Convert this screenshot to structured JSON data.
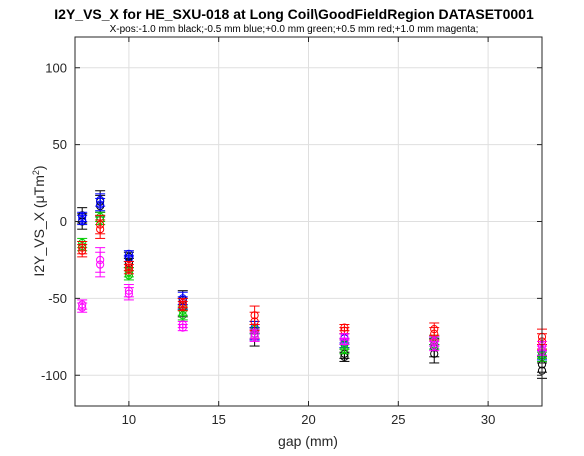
{
  "chart_data": {
    "type": "scatter",
    "title": "I2Y_VS_X for HE_SXU-018 at Long Coil\\GoodFieldRegion DATASET0001",
    "subtitle": "X-pos:-1.0 mm black;-0.5 mm blue;+0.0 mm green;+0.5 mm red;+1.0 mm magenta;",
    "xlabel": "gap (mm)",
    "ylabel_main": "I2Y_VS_X (μTm",
    "ylabel_sup": "2",
    "ylabel_end": ")",
    "xlim": [
      7,
      33
    ],
    "ylim": [
      -120,
      120
    ],
    "xticks": [
      10,
      15,
      20,
      25,
      30
    ],
    "yticks": [
      100,
      50,
      0,
      -50,
      -100
    ],
    "grid": true,
    "marker": "circle",
    "errorbars": true,
    "series": [
      {
        "color": "#000000",
        "points": [
          {
            "x": 7.4,
            "values": [
              4,
              0
            ],
            "err": 5
          },
          {
            "x": 8.4,
            "values": [
              13,
              10
            ],
            "err": 7
          },
          {
            "x": 10,
            "values": [
              -23,
              -27
            ],
            "err": 3
          },
          {
            "x": 13,
            "values": [
              -51,
              -56
            ],
            "err": 6
          },
          {
            "x": 17,
            "values": [
              -71,
              -75
            ],
            "err": 6
          },
          {
            "x": 22,
            "values": [
              -86,
              -88
            ],
            "err": 3
          },
          {
            "x": 27,
            "values": [
              -86,
              -82
            ],
            "err": 6
          },
          {
            "x": 33,
            "values": [
              -97,
              -93
            ],
            "err": 5
          }
        ]
      },
      {
        "color": "#0000ff",
        "points": [
          {
            "x": 7.4,
            "values": [
              3,
              1
            ],
            "err": 3
          },
          {
            "x": 8.4,
            "values": [
              14,
              11
            ],
            "err": 4
          },
          {
            "x": 10,
            "values": [
              -21,
              -24
            ],
            "err": 2
          },
          {
            "x": 13,
            "values": [
              -50,
              -53
            ],
            "err": 4
          },
          {
            "x": 17,
            "values": [
              -69,
              -73
            ],
            "err": 4
          },
          {
            "x": 22,
            "values": [
              -76,
              -79
            ],
            "err": 3
          },
          {
            "x": 27,
            "values": [
              -78,
              -80
            ],
            "err": 3
          },
          {
            "x": 33,
            "values": [
              -84,
              -87
            ],
            "err": 3
          }
        ]
      },
      {
        "color": "#00cc00",
        "points": [
          {
            "x": 7.4,
            "values": [
              -14,
              -16
            ],
            "err": 3
          },
          {
            "x": 8.4,
            "values": [
              3,
              1
            ],
            "err": 3
          },
          {
            "x": 10,
            "values": [
              -33,
              -35
            ],
            "err": 3
          },
          {
            "x": 13,
            "values": [
              -58,
              -61
            ],
            "err": 3
          },
          {
            "x": 17,
            "values": [
              -70,
              -73
            ],
            "err": 3
          },
          {
            "x": 22,
            "values": [
              -80,
              -83
            ],
            "err": 3
          },
          {
            "x": 27,
            "values": [
              -77,
              -80
            ],
            "err": 3
          },
          {
            "x": 33,
            "values": [
              -86,
              -88
            ],
            "err": 3
          }
        ]
      },
      {
        "color": "#ff0000",
        "points": [
          {
            "x": 7.4,
            "values": [
              -17,
              -19
            ],
            "err": 4
          },
          {
            "x": 8.4,
            "values": [
              -2,
              -5
            ],
            "err": 6
          },
          {
            "x": 10,
            "values": [
              -29,
              -31
            ],
            "err": 3
          },
          {
            "x": 13,
            "values": [
              -53,
              -55
            ],
            "err": 3
          },
          {
            "x": 17,
            "values": [
              -61,
              -65
            ],
            "err": 6
          },
          {
            "x": 22,
            "values": [
              -69,
              -71
            ],
            "err": 2
          },
          {
            "x": 27,
            "values": [
              -70,
              -73
            ],
            "err": 4
          },
          {
            "x": 33,
            "values": [
              -75,
              -78
            ],
            "err": 5
          }
        ]
      },
      {
        "color": "#ff00ff",
        "points": [
          {
            "x": 7.4,
            "values": [
              -54,
              -56
            ],
            "err": 3
          },
          {
            "x": 8.4,
            "values": [
              -25,
              -28
            ],
            "err": 8
          },
          {
            "x": 10,
            "values": [
              -45,
              -47
            ],
            "err": 4
          },
          {
            "x": 13,
            "values": [
              -67,
              -69
            ],
            "err": 2
          },
          {
            "x": 17,
            "values": [
              -73,
              -75
            ],
            "err": 3
          },
          {
            "x": 22,
            "values": [
              -75,
              -78
            ],
            "err": 2
          },
          {
            "x": 27,
            "values": [
              -78,
              -81
            ],
            "err": 3
          },
          {
            "x": 33,
            "values": [
              -81,
              -84
            ],
            "err": 3
          }
        ]
      }
    ]
  }
}
